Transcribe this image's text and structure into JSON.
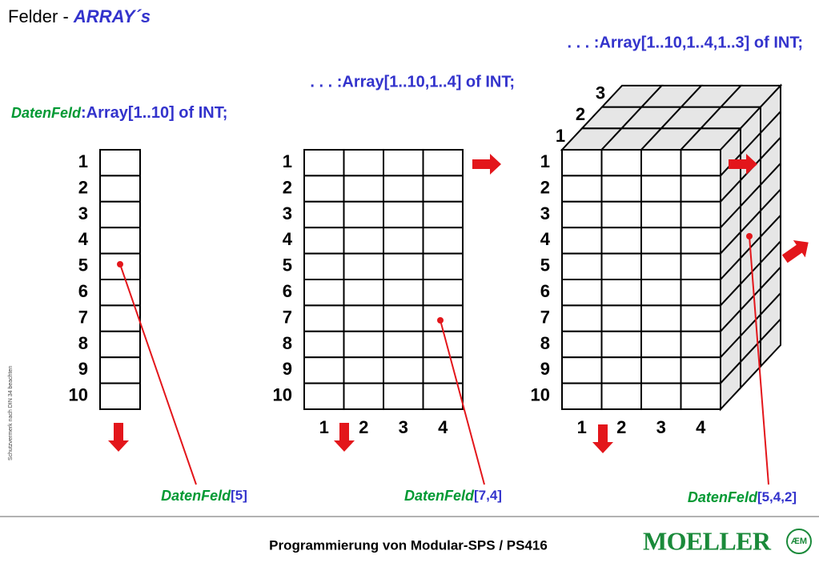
{
  "header": {
    "title": "Felder - ",
    "title_em": "ARRAY´s"
  },
  "declarations": [
    {
      "name": "DatenFeld",
      "text": ":Array[1..10] of INT;"
    },
    {
      "text": ". . . :Array[1..10,1..4] of INT;"
    },
    {
      "text": ". . . :Array[1..10,1..4,1..3] of INT;"
    }
  ],
  "arrays": [
    {
      "rows": [
        1,
        2,
        3,
        4,
        5,
        6,
        7,
        8,
        9,
        10
      ],
      "element": {
        "name": "DatenFeld",
        "index": "[5]"
      }
    },
    {
      "rows": [
        1,
        2,
        3,
        4,
        5,
        6,
        7,
        8,
        9,
        10
      ],
      "cols": [
        1,
        2,
        3,
        4
      ],
      "element": {
        "name": "DatenFeld",
        "index": "[7,4]"
      }
    },
    {
      "rows": [
        1,
        2,
        3,
        4,
        5,
        6,
        7,
        8,
        9,
        10
      ],
      "cols": [
        1,
        2,
        3,
        4
      ],
      "depth": [
        1,
        2,
        3
      ],
      "element": {
        "name": "DatenFeld",
        "index": "[5,4,2]"
      }
    }
  ],
  "side_note": "Schutzvermerk nach DIN 34 beachten",
  "footer": {
    "text": "Programmierung von Modular-SPS / PS416",
    "logo": "MOELLER"
  }
}
